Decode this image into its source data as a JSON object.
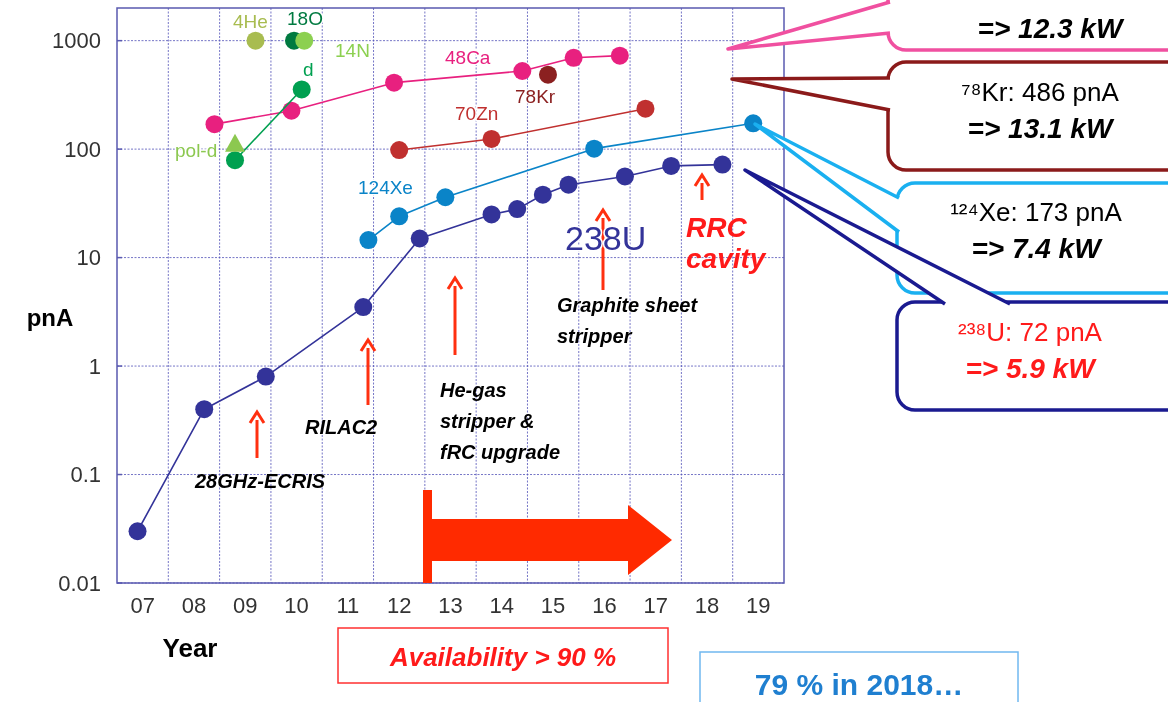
{
  "chart_data": {
    "type": "line",
    "xlabel": "Year",
    "ylabel": "pnA",
    "log": "y",
    "grid": true,
    "marker": "circle",
    "xlim": [
      6.5,
      19.5
    ],
    "xticks": [
      {
        "value": 7,
        "label": "07"
      },
      {
        "value": 7.5,
        "label": null
      },
      {
        "value": 8,
        "label": "08"
      },
      {
        "value": 8.5,
        "label": null
      },
      {
        "value": 9,
        "label": "09"
      },
      {
        "value": 9.5,
        "label": null
      },
      {
        "value": 10,
        "label": "10"
      },
      {
        "value": 10.5,
        "label": null
      },
      {
        "value": 11,
        "label": "11"
      },
      {
        "value": 11.5,
        "label": null
      },
      {
        "value": 12,
        "label": "12"
      },
      {
        "value": 12.5,
        "label": null
      },
      {
        "value": 13,
        "label": "13"
      },
      {
        "value": 13.5,
        "label": null
      },
      {
        "value": 14,
        "label": "14"
      },
      {
        "value": 14.5,
        "label": null
      },
      {
        "value": 15,
        "label": "15"
      },
      {
        "value": 15.5,
        "label": null
      },
      {
        "value": 16,
        "label": "16"
      },
      {
        "value": 16.5,
        "label": null
      },
      {
        "value": 17,
        "label": "17"
      },
      {
        "value": 17.5,
        "label": null
      },
      {
        "value": 18,
        "label": "18"
      },
      {
        "value": 18.5,
        "label": null
      },
      {
        "value": 19,
        "label": "19"
      }
    ],
    "ylim": [
      0.01,
      2000
    ],
    "yticks": [
      0.01,
      0.1,
      1,
      10,
      100,
      1000
    ],
    "series": [
      {
        "name": "238U",
        "color": "#333399",
        "x": [
          6.9,
          8.2,
          9.4,
          11.3,
          12.4,
          13.8,
          14.3,
          14.8,
          15.3,
          16.4,
          17.3,
          18.3
        ],
        "values": [
          0.03,
          0.4,
          0.8,
          3.5,
          15,
          25,
          28,
          38,
          47,
          56,
          70,
          72
        ]
      },
      {
        "name": "124Xe",
        "color": "#0a84c8",
        "x": [
          11.4,
          12.0,
          12.9,
          15.8,
          18.9
        ],
        "values": [
          14.5,
          24,
          36,
          101,
          173
        ]
      },
      {
        "name": "70Zn",
        "color": "#c0302f",
        "x": [
          12.0,
          13.8,
          16.8
        ],
        "values": [
          98,
          124,
          236
        ]
      },
      {
        "name": "48Ca",
        "color": "#e8207f",
        "x": [
          8.4,
          9.9,
          11.9,
          14.4,
          15.4,
          16.3
        ],
        "values": [
          170,
          226,
          410,
          525,
          695,
          727
        ]
      },
      {
        "name": "78Kr",
        "type": "scatter",
        "color": "#8b2020",
        "x": [
          14.9
        ],
        "values": [
          486
        ]
      },
      {
        "name": "d",
        "color": "#00a050",
        "x": [
          8.8,
          10.1
        ],
        "values": [
          79,
          355
        ]
      },
      {
        "name": "pol-d",
        "type": "scatter",
        "marker": "triangle",
        "color": "#8cc850",
        "x": [
          8.8
        ],
        "values": [
          112
        ]
      },
      {
        "name": "4He",
        "type": "scatter",
        "color": "#a8bc50",
        "x": [
          9.2
        ],
        "values": [
          1000
        ]
      },
      {
        "name": "18O",
        "type": "scatter",
        "color": "#007a40",
        "x": [
          9.95
        ],
        "values": [
          1000
        ]
      },
      {
        "name": "14N",
        "type": "scatter",
        "color": "#8cd050",
        "x": [
          10.15
        ],
        "values": [
          1000
        ]
      }
    ],
    "annotations": [
      "28GHz-ECRIS",
      "RILAC2",
      "He-gas\nstripper &\nfRC upgrade",
      "Graphite sheet\nstripper",
      "RRC\ncavity",
      "Availability > 90 %",
      "79 % in 2018…",
      "=> 12.3 kW",
      "⁷⁸Kr: 486 pnA\n=> 13.1 kW",
      "¹²⁴Xe: 173 pnA\n=> 7.4 kW",
      "²³⁸U: 72 pnA\n=> 5.9 kW"
    ]
  }
}
